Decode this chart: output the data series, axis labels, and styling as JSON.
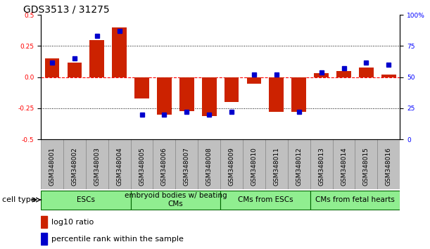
{
  "title": "GDS3513 / 31275",
  "samples": [
    "GSM348001",
    "GSM348002",
    "GSM348003",
    "GSM348004",
    "GSM348005",
    "GSM348006",
    "GSM348007",
    "GSM348008",
    "GSM348009",
    "GSM348010",
    "GSM348011",
    "GSM348012",
    "GSM348013",
    "GSM348014",
    "GSM348015",
    "GSM348016"
  ],
  "log10_ratio": [
    0.15,
    0.12,
    0.3,
    0.4,
    -0.17,
    -0.3,
    -0.27,
    -0.31,
    -0.2,
    -0.05,
    -0.28,
    -0.28,
    0.03,
    0.05,
    0.08,
    0.02
  ],
  "percentile_rank": [
    62,
    65,
    83,
    87,
    20,
    20,
    22,
    20,
    22,
    52,
    52,
    22,
    54,
    57,
    62,
    60
  ],
  "ylim_left": [
    -0.5,
    0.5
  ],
  "ylim_right": [
    0,
    100
  ],
  "yticks_left": [
    -0.5,
    -0.25,
    0.0,
    0.25,
    0.5
  ],
  "yticks_right": [
    0,
    25,
    50,
    75,
    100
  ],
  "cell_type_groups": [
    {
      "label": "ESCs",
      "start": 0,
      "end": 3
    },
    {
      "label": "embryoid bodies w/ beating\nCMs",
      "start": 4,
      "end": 7
    },
    {
      "label": "CMs from ESCs",
      "start": 8,
      "end": 11
    },
    {
      "label": "CMs from fetal hearts",
      "start": 12,
      "end": 15
    }
  ],
  "bar_color": "#CC2200",
  "dot_color": "#0000CC",
  "legend_items": [
    {
      "label": "log10 ratio",
      "color": "#CC2200"
    },
    {
      "label": "percentile rank within the sample",
      "color": "#0000CC"
    }
  ],
  "bg_color": "white",
  "cell_type_label": "cell type",
  "group_fill_color": "#90EE90",
  "group_edge_color": "#006600",
  "sample_box_color": "#C0C0C0",
  "sample_box_edge": "#888888",
  "title_fontsize": 10,
  "tick_fontsize": 6.5,
  "label_fontsize": 8,
  "group_fontsize": 7.5
}
